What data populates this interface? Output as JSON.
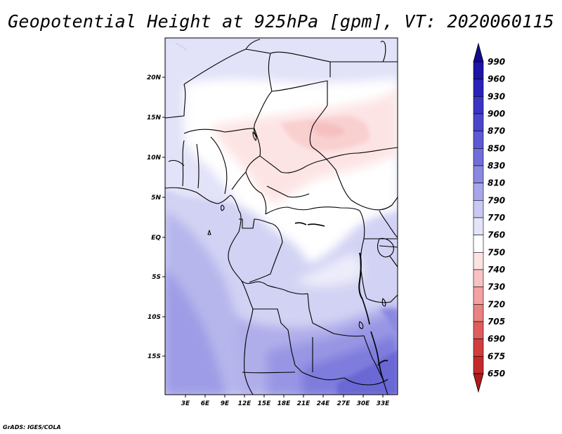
{
  "title": "Geopotential Height at 925hPa [gpm], VT: 2020060115",
  "credit": "GrADS: IGES/COLA",
  "map": {
    "lat_labels": [
      "20N",
      "15N",
      "10N",
      "5N",
      "EQ",
      "5S",
      "10S",
      "15S"
    ],
    "lon_labels": [
      "3E",
      "6E",
      "9E",
      "12E",
      "15E",
      "18E",
      "21E",
      "24E",
      "27E",
      "30E",
      "33E"
    ]
  },
  "colorbar": {
    "levels": [
      "990",
      "960",
      "930",
      "900",
      "870",
      "850",
      "830",
      "810",
      "790",
      "770",
      "760",
      "750",
      "740",
      "730",
      "720",
      "705",
      "690",
      "675",
      "650"
    ],
    "colors": [
      "#150a8c",
      "#1e14a6",
      "#2a22b8",
      "#3a34c4",
      "#4a46cc",
      "#5c5ad4",
      "#706ed8",
      "#8a88e0",
      "#a8a6ea",
      "#c8c8f2",
      "#e4e4f8",
      "#ffffff",
      "#fde2e2",
      "#f8c2c2",
      "#f2a2a2",
      "#ea8282",
      "#de5e5e",
      "#d23e3e",
      "#c42a2a",
      "#b01a1a"
    ]
  }
}
